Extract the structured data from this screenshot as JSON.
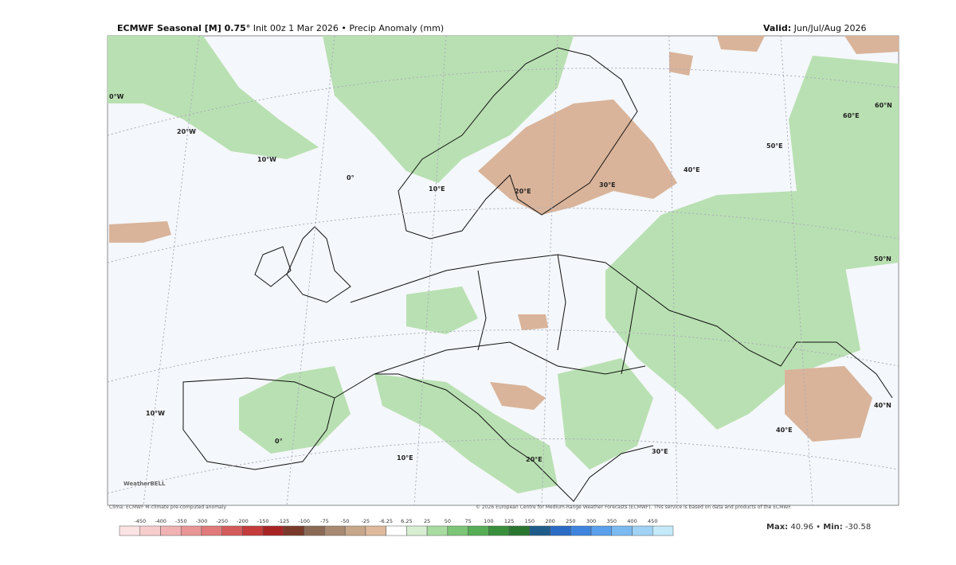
{
  "header": {
    "title_bold": "ECMWF Seasonal [M] 0.75°",
    "title_rest": "Init 00z 1 Mar 2026 • Precip Anomaly (mm)",
    "valid_label": "Valid:",
    "valid_value": "Jun/Jul/Aug 2026"
  },
  "map": {
    "grid_labels": [
      "0°W",
      "20°W",
      "10°W",
      "0°",
      "10°E",
      "20°E",
      "30°E",
      "40°E",
      "50°E",
      "60°E",
      "60°N",
      "50°N",
      "40°N",
      "10°W",
      "0°",
      "10°E",
      "20°E",
      "30°E",
      "40°E"
    ],
    "logo": "WeatherBELL"
  },
  "footer": {
    "left": "Clima: ECMWF M-climate pre-computed anomaly",
    "right": "© 2026 European Centre for Medium-Range Weather Forecasts (ECMWF). This service is based on data and products of the ECMWF."
  },
  "colorbar": {
    "labels": [
      -450,
      -400,
      -350,
      -300,
      -250,
      -200,
      -150,
      -125,
      -100,
      -75,
      -50,
      -25,
      -6.25,
      6.25,
      25,
      50,
      75,
      100,
      125,
      150,
      200,
      250,
      300,
      350,
      400,
      450
    ],
    "colors": [
      "#fbe3e3",
      "#f6cccc",
      "#f0b2b2",
      "#e99696",
      "#e07a7a",
      "#d45b5b",
      "#c43c3c",
      "#a82424",
      "#7a3a2a",
      "#8b6a55",
      "#a88a72",
      "#c7a68a",
      "#deb99c",
      "#ffffff",
      "#d7eed3",
      "#a8dca0",
      "#7cc576",
      "#56ad55",
      "#3a8f3c",
      "#2a7530",
      "#1f5c8a",
      "#2b6cc4",
      "#3f85de",
      "#5aa0ea",
      "#7bbaf0",
      "#9fd2f5",
      "#c4eaf9"
    ]
  },
  "stats": {
    "max_label": "Max:",
    "max": 40.96,
    "sep": "•",
    "min_label": "Min:",
    "min": -30.58
  }
}
